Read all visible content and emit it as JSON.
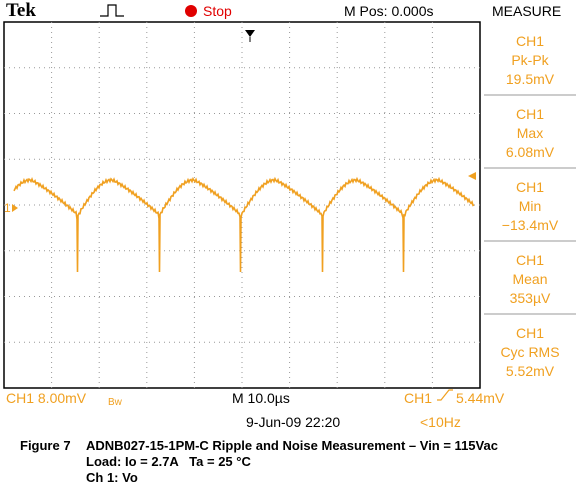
{
  "header": {
    "brand": "Tek",
    "status": "Stop",
    "position": "M Pos: 0.000s",
    "menu": "MEASURE"
  },
  "measurements": [
    {
      "channel": "CH1",
      "name": "Pk-Pk",
      "value": "19.5mV"
    },
    {
      "channel": "CH1",
      "name": "Max",
      "value": "6.08mV"
    },
    {
      "channel": "CH1",
      "name": "Min",
      "value": "−13.4mV"
    },
    {
      "channel": "CH1",
      "name": "Mean",
      "value": "353µV"
    },
    {
      "channel": "CH1",
      "name": "Cyc RMS",
      "value": "5.52mV"
    }
  ],
  "footer": {
    "channel_scale": "CH1  8.00mV",
    "bandwidth": "Bw",
    "timebase": "M 10.0µs",
    "trigger_channel": "CH1",
    "trigger_level": "5.44mV",
    "date": "9-Jun-09 22:20",
    "frequency": "<10Hz"
  },
  "marker": "1",
  "caption": {
    "figure": "Figure 7",
    "title": "ADNB027-15-1PM-C Ripple and Noise Measurement – Vin = 115Vac",
    "line2": "Load: Io = 2.7A   Ta = 25 °C",
    "line3": "Ch 1: Vo"
  }
}
